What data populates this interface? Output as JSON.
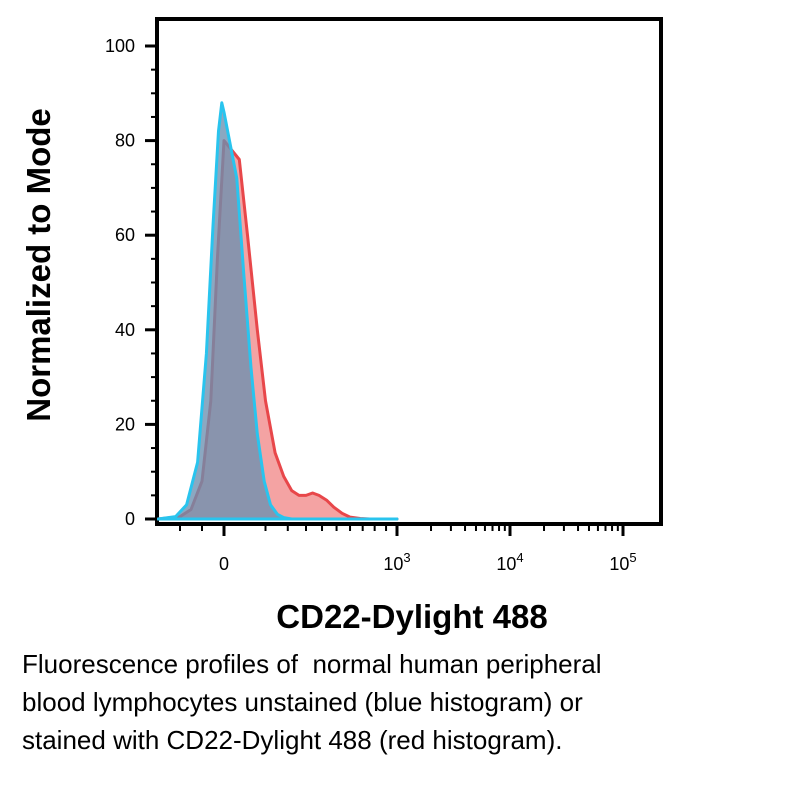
{
  "chart_data": {
    "type": "area",
    "title": "",
    "xlabel": "CD22-Dylight 488",
    "ylabel": "Normalized to Mode",
    "ylim": [
      0,
      100
    ],
    "x_scale": "biexponential",
    "yticks": [
      "0",
      "20",
      "40",
      "60",
      "80",
      "100"
    ],
    "xticks": [
      {
        "base": "0",
        "exp": ""
      },
      {
        "base": "10",
        "exp": "3"
      },
      {
        "base": "10",
        "exp": "4"
      },
      {
        "base": "10",
        "exp": "5"
      }
    ],
    "grid": false,
    "legend": "none",
    "series": [
      {
        "color_fill": "#f08080",
        "color_line": "#e8474a",
        "x": [
          -300,
          -200,
          -150,
          -100,
          -60,
          -30,
          0,
          20,
          40,
          70,
          100,
          140,
          180,
          220,
          260,
          300,
          340,
          380,
          430,
          480,
          540,
          600,
          680,
          760,
          860,
          1000
        ],
        "y": [
          0,
          0.5,
          2,
          8,
          25,
          55,
          80,
          76,
          60,
          40,
          25,
          14,
          9,
          6,
          5,
          5,
          5.5,
          5,
          4,
          2.5,
          1.2,
          0.4,
          0.1,
          0,
          0,
          0
        ]
      },
      {
        "color_fill": "#6a8fb0",
        "color_line": "#29c4ee",
        "x": [
          -300,
          -220,
          -170,
          -120,
          -80,
          -50,
          -25,
          -10,
          0,
          15,
          30,
          50,
          70,
          95,
          120,
          150,
          180,
          220,
          260,
          1000
        ],
        "y": [
          0,
          0.5,
          3,
          12,
          35,
          62,
          82,
          88,
          86,
          72,
          52,
          32,
          18,
          8,
          3,
          1,
          0.3,
          0,
          0,
          0
        ]
      }
    ]
  },
  "caption": {
    "lines": [
      "Fluorescence profiles of  normal human peripheral",
      "blood lymphocytes unstained (blue histogram) or",
      "stained with CD22-Dylight 488 (red histogram)."
    ]
  }
}
